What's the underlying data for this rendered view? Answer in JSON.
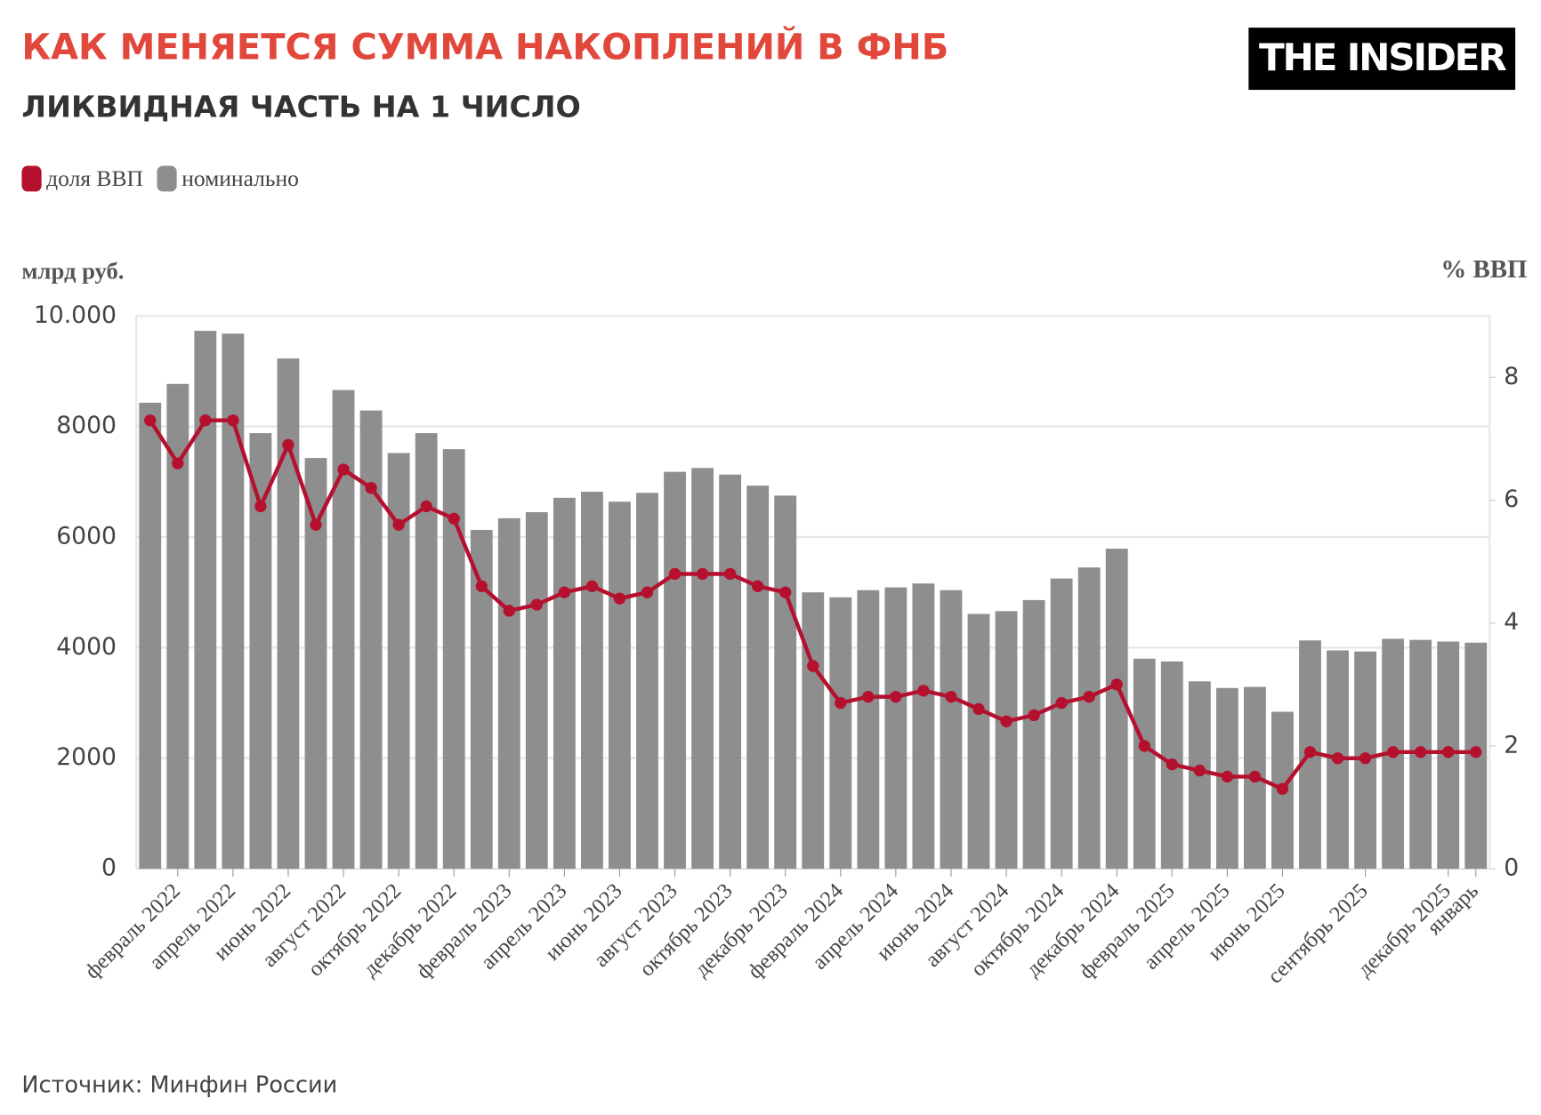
{
  "chart_data": {
    "type": "bar",
    "title": "КАК МЕНЯЕТСЯ СУММА НАКОПЛЕНИЙ В ФНБ",
    "subtitle": "ЛИКВИДНАЯ ЧАСТЬ НА 1 ЧИСЛО",
    "logo": "THE INSIDER",
    "source": "Источник: Минфин России",
    "y_label": "млрд руб.",
    "y2_label": "% ВВП",
    "categories": [
      null,
      "февраль 2022",
      null,
      "апрель 2022",
      null,
      "июнь 2022",
      null,
      "август 2022",
      null,
      "октябрь 2022",
      null,
      "декабрь 2022",
      null,
      "февраль 2023",
      null,
      "апрель 2023",
      null,
      "июнь 2023",
      null,
      "август 2023",
      null,
      "октябрь 2023",
      null,
      "декабрь 2023",
      null,
      "февраль 2024",
      null,
      "апрель 2024",
      null,
      "июнь 2024",
      null,
      "август 2024",
      null,
      "октябрь 2024",
      null,
      "декабрь 2024",
      null,
      "февраль 2025",
      null,
      "апрель 2025",
      null,
      "июнь 2025",
      null,
      null,
      "сентябрь 2025",
      null,
      null,
      "декабрь 2025",
      "январь"
    ],
    "series": [
      {
        "name": "доля ВВП",
        "type": "line",
        "axis": "y2",
        "color": "#b5112f",
        "values": [
          7.3,
          6.6,
          7.3,
          7.3,
          5.9,
          6.9,
          5.6,
          6.5,
          6.2,
          5.6,
          5.9,
          5.7,
          4.6,
          4.2,
          4.3,
          4.5,
          4.6,
          4.4,
          4.5,
          4.8,
          4.8,
          4.8,
          4.6,
          4.5,
          3.3,
          2.7,
          2.8,
          2.8,
          2.9,
          2.8,
          2.6,
          2.4,
          2.5,
          2.7,
          2.8,
          3.0,
          2.0,
          1.7,
          1.6,
          1.5,
          1.5,
          1.3,
          1.9,
          1.8,
          1.8,
          1.9,
          1.9,
          1.9,
          1.9
        ]
      },
      {
        "name": "номинально",
        "type": "bar",
        "color": "#8e8e8e",
        "values": [
          8430,
          8770,
          9730,
          9680,
          7880,
          9230,
          7430,
          8660,
          8290,
          7520,
          7880,
          7590,
          6130,
          6340,
          6450,
          6710,
          6820,
          6640,
          6800,
          7180,
          7250,
          7130,
          6930,
          6750,
          5000,
          4910,
          5040,
          5090,
          5160,
          5040,
          4610,
          4660,
          4860,
          5250,
          5450,
          5790,
          3800,
          3750,
          3390,
          3270,
          3290,
          2840,
          4130,
          3950,
          3930,
          4160,
          4140,
          4110,
          4090
        ]
      }
    ],
    "ylim": [
      0,
      10000
    ],
    "yticks": [
      0,
      2000,
      4000,
      6000,
      8000,
      {
        "value": 10000,
        "label": "10.000"
      }
    ],
    "y2lim": [
      0,
      9
    ],
    "y2ticks": [
      0,
      2,
      4,
      6,
      8
    ],
    "grid": true
  }
}
